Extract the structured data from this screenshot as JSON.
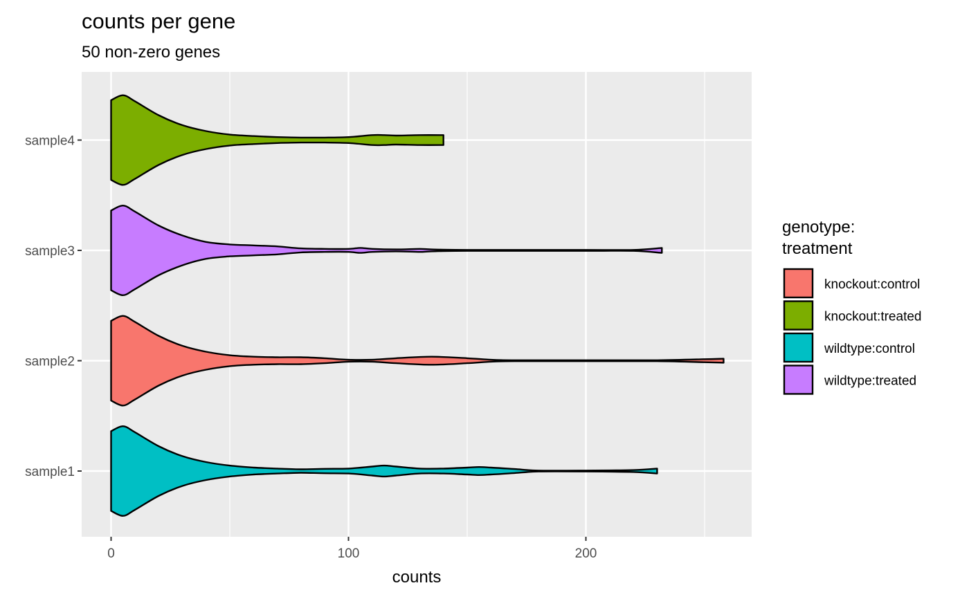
{
  "chart_data": {
    "type": "violin",
    "title": "counts per gene",
    "subtitle": "50 non-zero genes",
    "xlabel": "counts",
    "ylabel": "",
    "xlim": [
      -12.5,
      270
    ],
    "x_ticks": [
      0,
      100,
      200
    ],
    "x_minor_ticks": [
      50,
      150,
      250
    ],
    "categories": [
      "sample1",
      "sample2",
      "sample3",
      "sample4"
    ],
    "grid": true,
    "panel_background": "#ebebeb",
    "legend": {
      "title_line1": "genotype:",
      "title_line2": "treatment",
      "placement": "right",
      "entries": [
        {
          "label": "knockout:control",
          "color": "#F8766D"
        },
        {
          "label": "knockout:treated",
          "color": "#7CAE00"
        },
        {
          "label": "wildtype:control",
          "color": "#00BFC4"
        },
        {
          "label": "wildtype:treated",
          "color": "#C77CFF"
        }
      ]
    },
    "series": [
      {
        "sample": "sample1",
        "group": "wildtype:control",
        "color": "#00BFC4",
        "density": [
          [
            0,
            0.8
          ],
          [
            5,
            0.9
          ],
          [
            10,
            0.78
          ],
          [
            20,
            0.5
          ],
          [
            30,
            0.3
          ],
          [
            40,
            0.18
          ],
          [
            50,
            0.11
          ],
          [
            60,
            0.07
          ],
          [
            70,
            0.05
          ],
          [
            80,
            0.035
          ],
          [
            90,
            0.045
          ],
          [
            100,
            0.05
          ],
          [
            110,
            0.09
          ],
          [
            115,
            0.11
          ],
          [
            120,
            0.09
          ],
          [
            130,
            0.05
          ],
          [
            140,
            0.05
          ],
          [
            150,
            0.07
          ],
          [
            155,
            0.08
          ],
          [
            160,
            0.07
          ],
          [
            170,
            0.04
          ],
          [
            180,
            0.01
          ],
          [
            200,
            0.01
          ],
          [
            220,
            0.02
          ],
          [
            230,
            0.05
          ]
        ]
      },
      {
        "sample": "sample2",
        "group": "knockout:control",
        "color": "#F8766D",
        "density": [
          [
            0,
            0.8
          ],
          [
            5,
            0.9
          ],
          [
            10,
            0.78
          ],
          [
            20,
            0.5
          ],
          [
            30,
            0.3
          ],
          [
            40,
            0.18
          ],
          [
            50,
            0.11
          ],
          [
            60,
            0.08
          ],
          [
            70,
            0.07
          ],
          [
            80,
            0.07
          ],
          [
            90,
            0.05
          ],
          [
            100,
            0.02
          ],
          [
            110,
            0.02
          ],
          [
            120,
            0.05
          ],
          [
            135,
            0.08
          ],
          [
            150,
            0.05
          ],
          [
            160,
            0.02
          ],
          [
            170,
            0.01
          ],
          [
            200,
            0.01
          ],
          [
            230,
            0.01
          ],
          [
            250,
            0.03
          ],
          [
            258,
            0.04
          ]
        ]
      },
      {
        "sample": "sample3",
        "group": "wildtype:treated",
        "color": "#C77CFF",
        "density": [
          [
            0,
            0.8
          ],
          [
            5,
            0.9
          ],
          [
            10,
            0.78
          ],
          [
            20,
            0.5
          ],
          [
            30,
            0.3
          ],
          [
            40,
            0.17
          ],
          [
            50,
            0.12
          ],
          [
            60,
            0.1
          ],
          [
            70,
            0.08
          ],
          [
            80,
            0.04
          ],
          [
            90,
            0.03
          ],
          [
            100,
            0.03
          ],
          [
            105,
            0.05
          ],
          [
            110,
            0.03
          ],
          [
            120,
            0.02
          ],
          [
            130,
            0.03
          ],
          [
            135,
            0.02
          ],
          [
            150,
            0.01
          ],
          [
            200,
            0.01
          ],
          [
            220,
            0.01
          ],
          [
            232,
            0.05
          ]
        ]
      },
      {
        "sample": "sample4",
        "group": "knockout:treated",
        "color": "#7CAE00",
        "density": [
          [
            0,
            0.8
          ],
          [
            5,
            0.9
          ],
          [
            10,
            0.78
          ],
          [
            20,
            0.5
          ],
          [
            30,
            0.3
          ],
          [
            40,
            0.18
          ],
          [
            50,
            0.11
          ],
          [
            60,
            0.08
          ],
          [
            70,
            0.06
          ],
          [
            80,
            0.05
          ],
          [
            90,
            0.05
          ],
          [
            100,
            0.06
          ],
          [
            110,
            0.1
          ],
          [
            115,
            0.1
          ],
          [
            120,
            0.09
          ],
          [
            130,
            0.1
          ],
          [
            140,
            0.1
          ]
        ]
      }
    ]
  }
}
